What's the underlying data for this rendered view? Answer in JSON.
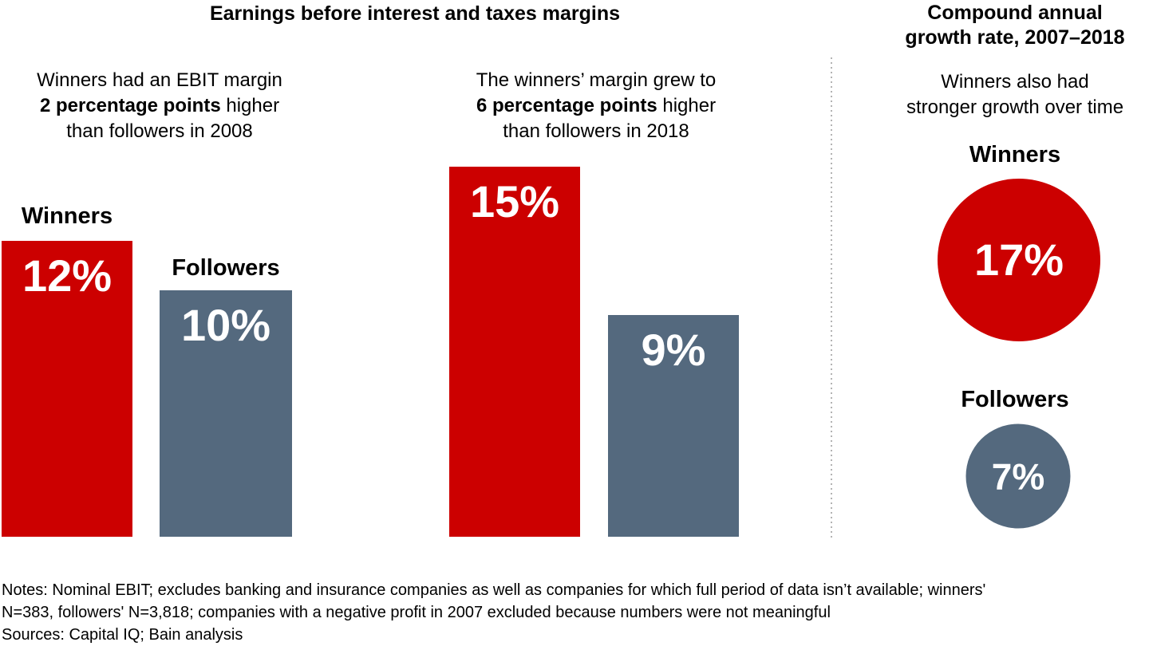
{
  "colors": {
    "winners": "#CC0000",
    "followers": "#54697E",
    "divider": "#B3B3B3",
    "text": "#000000",
    "value_text": "#FFFFFF"
  },
  "titles": {
    "main": "Earnings before interest and taxes margins",
    "right_line1": "Compound annual",
    "right_line2": "growth rate, 2007–2018"
  },
  "annotations": {
    "g2008": {
      "line1": "Winners had an EBIT margin",
      "bold": "2 percentage points",
      "after_bold": " higher",
      "line3": "than followers in 2008"
    },
    "g2018": {
      "line1": "The winners’ margin grew to",
      "bold": "6 percentage points",
      "after_bold": " higher",
      "line3": "than followers in 2018"
    },
    "growth": {
      "line1": "Winners also had",
      "line2": "stronger growth over time"
    }
  },
  "bars": [
    {
      "id": "bar-2008-winners",
      "series": "winners",
      "label": "Winners",
      "value": 12,
      "value_label": "12%"
    },
    {
      "id": "bar-2008-followers",
      "series": "followers",
      "label": "Followers",
      "value": 10,
      "value_label": "10%"
    },
    {
      "id": "bar-2018-winners",
      "series": "winners",
      "label": "",
      "value": 15,
      "value_label": "15%"
    },
    {
      "id": "bar-2018-followers",
      "series": "followers",
      "label": "",
      "value": 9,
      "value_label": "9%"
    }
  ],
  "circles": [
    {
      "id": "circle-winners",
      "series": "winners",
      "label": "Winners",
      "value": 17,
      "value_label": "17%"
    },
    {
      "id": "circle-followers",
      "series": "followers",
      "label": "Followers",
      "value": 7,
      "value_label": "7%"
    }
  ],
  "notes": {
    "line1": "Notes: Nominal EBIT; excludes banking and insurance companies as well as companies for which full period of data isn’t available; winners'",
    "line2": "N=383, followers' N=3,818; companies with a negative profit in 2007 excluded because numbers were not meaningful",
    "sources": "Sources: Capital IQ; Bain analysis"
  },
  "chart_data": [
    {
      "type": "bar",
      "title": "Earnings before interest and taxes margins",
      "categories": [
        "Winners",
        "Followers"
      ],
      "unit": "%",
      "series": [
        {
          "name": "EBIT margin 2008",
          "annotation": "Winners had an EBIT margin 2 percentage points higher than followers in 2008",
          "annotation_bold_segment": "2 percentage points",
          "values": [
            12,
            10
          ]
        },
        {
          "name": "EBIT margin 2018",
          "annotation": "The winners’ margin grew to 6 percentage points higher than followers in 2018",
          "annotation_bold_segment": "6 percentage points",
          "values": [
            15,
            9
          ]
        }
      ],
      "data_labels": [
        [
          "12%",
          "10%"
        ],
        [
          "15%",
          "9%"
        ]
      ],
      "colors": {
        "Winners": "#CC0000",
        "Followers": "#54697E"
      },
      "ylim": [
        0,
        15
      ],
      "grid": false,
      "axes_shown": false,
      "legend_position": "none"
    },
    {
      "type": "bubble",
      "title": "Compound annual growth rate, 2007–2018",
      "annotation": "Winners also had stronger growth over time",
      "categories": [
        "Winners",
        "Followers"
      ],
      "values": [
        17,
        7
      ],
      "data_labels": [
        "17%",
        "7%"
      ],
      "unit": "%",
      "colors": {
        "Winners": "#CC0000",
        "Followers": "#54697E"
      },
      "sizing": "area-proportional",
      "grid": false,
      "axes_shown": false,
      "legend_position": "none"
    }
  ]
}
